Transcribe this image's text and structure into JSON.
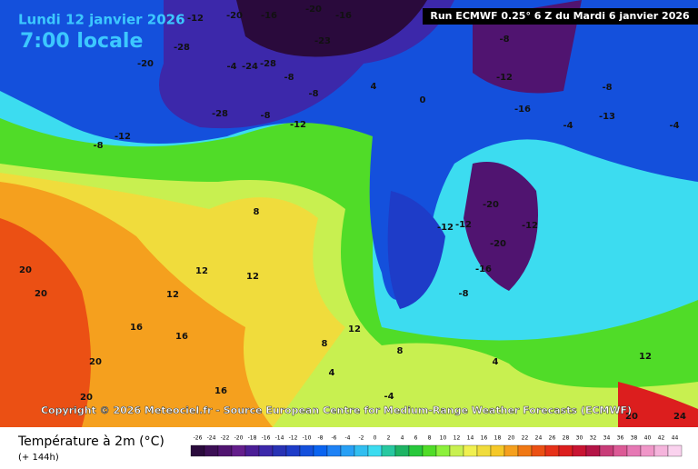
{
  "header": {
    "date": "Lundi 12 janvier 2026",
    "time": "7:00 locale",
    "run": "Run ECMWF 0.25° 6 Z du Mardi 6 janvier 2026"
  },
  "copyright": "Copyright © 2026 Meteociel.fr - Source European Centre for Medium-Range Weather Forecasts (ECMWF)",
  "footer": {
    "title": "Température à 2m (°C)",
    "subtitle": "(+ 144h)"
  },
  "legend": {
    "labels": [
      -26,
      -24,
      -22,
      -20,
      -18,
      -16,
      -14,
      -12,
      -10,
      -8,
      -6,
      -4,
      -2,
      0,
      2,
      4,
      6,
      8,
      10,
      12,
      14,
      16,
      18,
      20,
      22,
      24,
      26,
      28,
      30,
      32,
      34,
      36,
      38,
      40,
      42,
      44
    ],
    "colors": [
      "#2a0a3c",
      "#3c0f55",
      "#501470",
      "#641e8c",
      "#4b1e96",
      "#3c28aa",
      "#2832b4",
      "#1e3cc8",
      "#1450dc",
      "#0a64f0",
      "#1e82f5",
      "#28a0f5",
      "#32bef0",
      "#3cdcf0",
      "#28c8a0",
      "#1eb464",
      "#28c83c",
      "#50dc28",
      "#8cf03c",
      "#c8f050",
      "#f0f050",
      "#f0dc3c",
      "#f5c828",
      "#f5a01e",
      "#f07814",
      "#eb5014",
      "#e63219",
      "#dc1e1e",
      "#c81432",
      "#b41446",
      "#c83c78",
      "#dc5a96",
      "#e678b4",
      "#f096c8",
      "#f5b4dc",
      "#fad2ee"
    ]
  },
  "map_labels": [
    -20,
    -16,
    -20,
    -16,
    -23,
    -28,
    -28,
    -24,
    -12,
    -20,
    -8,
    -4,
    -8,
    -28,
    -8,
    -12,
    -12,
    -8,
    -8,
    -16,
    -8,
    -4,
    -4,
    -13,
    -12,
    4,
    0,
    -20,
    -12,
    -12,
    -20,
    -16,
    -12,
    -8,
    8,
    12,
    12,
    12,
    20,
    20,
    16,
    16,
    20,
    20,
    16,
    12,
    8,
    8,
    4,
    -4,
    4,
    12,
    20,
    24
  ]
}
